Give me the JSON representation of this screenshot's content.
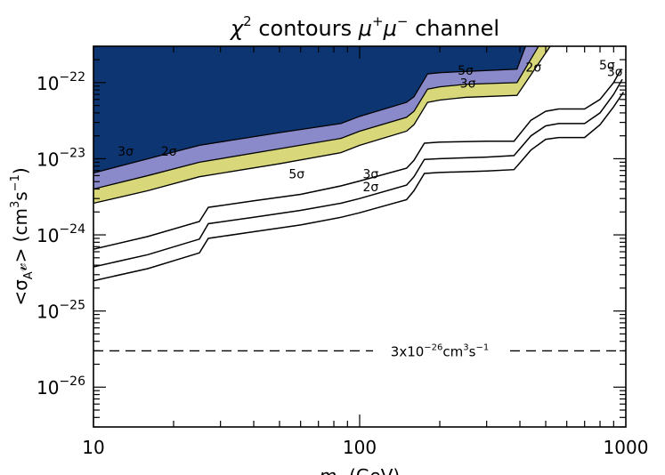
{
  "chart_data": {
    "type": "line",
    "title_parts": [
      "χ",
      "2",
      " contours ",
      "μ",
      "+",
      "μ",
      "−",
      " channel"
    ],
    "ylabel_parts": [
      "<σ",
      "A",
      "𝓋> (cm",
      "3",
      "s",
      "−1",
      ")"
    ],
    "xlabel_parts": [
      "m",
      "χ",
      " (GeV)"
    ],
    "x_scale": "log",
    "y_scale": "log",
    "xlim": [
      10,
      1000
    ],
    "ylim": [
      3e-27,
      3e-22
    ],
    "x_ticks": [
      10,
      100,
      1000
    ],
    "x_tick_labels": [
      "10",
      "100",
      "1000"
    ],
    "y_ticks": [
      1e-26,
      1e-25,
      1e-24,
      1e-23,
      1e-22
    ],
    "y_tick_labels": [
      {
        "base": "10",
        "exp": "−26"
      },
      {
        "base": "10",
        "exp": "−25"
      },
      {
        "base": "10",
        "exp": "−24"
      },
      {
        "base": "10",
        "exp": "−23"
      },
      {
        "base": "10",
        "exp": "−22"
      }
    ],
    "colors": {
      "region_5sigma": "#0c3572",
      "region_3sigma": "#8a8acb",
      "region_2sigma": "#d8d87a",
      "line": "#000000"
    },
    "regions": [
      {
        "name": "5σ",
        "lower": [
          [
            10,
            6.5e-24
          ],
          [
            16,
            1e-23
          ],
          [
            25,
            1.5e-23
          ],
          [
            50,
            2.2e-23
          ],
          [
            85,
            2.9e-23
          ],
          [
            100,
            3.6e-23
          ],
          [
            150,
            5.5e-23
          ],
          [
            160,
            6.5e-23
          ],
          [
            180,
            1.3e-22
          ],
          [
            200,
            1.35e-22
          ],
          [
            250,
            1.4e-22
          ],
          [
            390,
            1.5e-22
          ],
          [
            420,
            3e-22
          ]
        ]
      },
      {
        "name": "3σ",
        "lower": [
          [
            10,
            4e-24
          ],
          [
            16,
            6e-24
          ],
          [
            25,
            9e-24
          ],
          [
            50,
            1.35e-23
          ],
          [
            85,
            1.85e-23
          ],
          [
            100,
            2.3e-23
          ],
          [
            150,
            3.5e-23
          ],
          [
            160,
            4.2e-23
          ],
          [
            180,
            8.2e-23
          ],
          [
            200,
            8.8e-23
          ],
          [
            250,
            9.5e-23
          ],
          [
            390,
            1e-22
          ],
          [
            470,
            3e-22
          ]
        ]
      },
      {
        "name": "2σ",
        "lower": [
          [
            10,
            2.6e-24
          ],
          [
            16,
            3.8e-24
          ],
          [
            25,
            5.8e-24
          ],
          [
            50,
            8.6e-24
          ],
          [
            85,
            1.2e-23
          ],
          [
            100,
            1.5e-23
          ],
          [
            150,
            2.3e-23
          ],
          [
            160,
            2.8e-23
          ],
          [
            180,
            5.5e-23
          ],
          [
            200,
            5.9e-23
          ],
          [
            250,
            6.4e-23
          ],
          [
            390,
            6.8e-23
          ],
          [
            520,
            3e-22
          ]
        ]
      }
    ],
    "lines": [
      {
        "name": "5σ",
        "points": [
          [
            10,
            6.5e-25
          ],
          [
            16,
            9.5e-25
          ],
          [
            25,
            1.5e-24
          ],
          [
            27,
            2.3e-24
          ],
          [
            40,
            2.8e-24
          ],
          [
            60,
            3.4e-24
          ],
          [
            85,
            4.4e-24
          ],
          [
            100,
            5.1e-24
          ],
          [
            150,
            7.5e-24
          ],
          [
            160,
            9.5e-24
          ],
          [
            175,
            1.6e-23
          ],
          [
            200,
            1.65e-23
          ],
          [
            300,
            1.7e-23
          ],
          [
            380,
            1.7e-23
          ],
          [
            440,
            3.2e-23
          ],
          [
            500,
            4.2e-23
          ],
          [
            560,
            4.5e-23
          ],
          [
            700,
            4.5e-23
          ],
          [
            800,
            6e-23
          ],
          [
            900,
            1e-22
          ],
          [
            960,
            1.5e-22
          ]
        ]
      },
      {
        "name": "3σ",
        "points": [
          [
            10,
            3.8e-25
          ],
          [
            16,
            5.5e-25
          ],
          [
            25,
            8.8e-25
          ],
          [
            27,
            1.4e-24
          ],
          [
            40,
            1.7e-24
          ],
          [
            60,
            2.1e-24
          ],
          [
            85,
            2.6e-24
          ],
          [
            100,
            3e-24
          ],
          [
            150,
            4.5e-24
          ],
          [
            160,
            5.8e-24
          ],
          [
            175,
            9.8e-24
          ],
          [
            200,
            1e-23
          ],
          [
            300,
            1.05e-23
          ],
          [
            380,
            1.1e-23
          ],
          [
            440,
            2e-23
          ],
          [
            500,
            2.7e-23
          ],
          [
            560,
            2.9e-23
          ],
          [
            700,
            2.9e-23
          ],
          [
            800,
            4e-23
          ],
          [
            900,
            7e-23
          ],
          [
            970,
            1.1e-22
          ]
        ]
      },
      {
        "name": "2σ",
        "points": [
          [
            10,
            2.5e-25
          ],
          [
            16,
            3.6e-25
          ],
          [
            25,
            5.8e-25
          ],
          [
            27,
            9e-25
          ],
          [
            40,
            1.1e-24
          ],
          [
            60,
            1.35e-24
          ],
          [
            85,
            1.7e-24
          ],
          [
            100,
            1.95e-24
          ],
          [
            150,
            2.9e-24
          ],
          [
            160,
            3.8e-24
          ],
          [
            175,
            6.4e-24
          ],
          [
            200,
            6.6e-24
          ],
          [
            300,
            6.9e-24
          ],
          [
            380,
            7.2e-24
          ],
          [
            440,
            1.3e-23
          ],
          [
            500,
            1.8e-23
          ],
          [
            560,
            1.9e-23
          ],
          [
            700,
            1.9e-23
          ],
          [
            800,
            2.8e-23
          ],
          [
            900,
            4.8e-23
          ],
          [
            980,
            7.5e-23
          ]
        ]
      }
    ],
    "reference_line": {
      "y": 3e-26,
      "style": "dashed",
      "label_base": "3x10",
      "label_exp": "−26",
      "label_unit": "cm",
      "label_unit_exp": "3",
      "label_unit2": "s",
      "label_unit2_exp": "−1"
    },
    "annotations": [
      {
        "text": "5σ",
        "x": 250,
        "y": 1.45e-22
      },
      {
        "text": "3σ",
        "x": 255,
        "y": 9.8e-23
      },
      {
        "text": "2σ",
        "x": 450,
        "y": 1.6e-22
      },
      {
        "text": "3σ",
        "x": 13.2,
        "y": 1.25e-23
      },
      {
        "text": "2σ",
        "x": 19.2,
        "y": 1.25e-23
      },
      {
        "text": "5σ",
        "x": 58,
        "y": 6.3e-24
      },
      {
        "text": "3σ",
        "x": 110,
        "y": 6.3e-24
      },
      {
        "text": "2σ",
        "x": 110,
        "y": 4.3e-24
      },
      {
        "text": "5σ",
        "x": 850,
        "y": 1.7e-22
      },
      {
        "text": "3σ",
        "x": 910,
        "y": 1.4e-22
      }
    ]
  }
}
